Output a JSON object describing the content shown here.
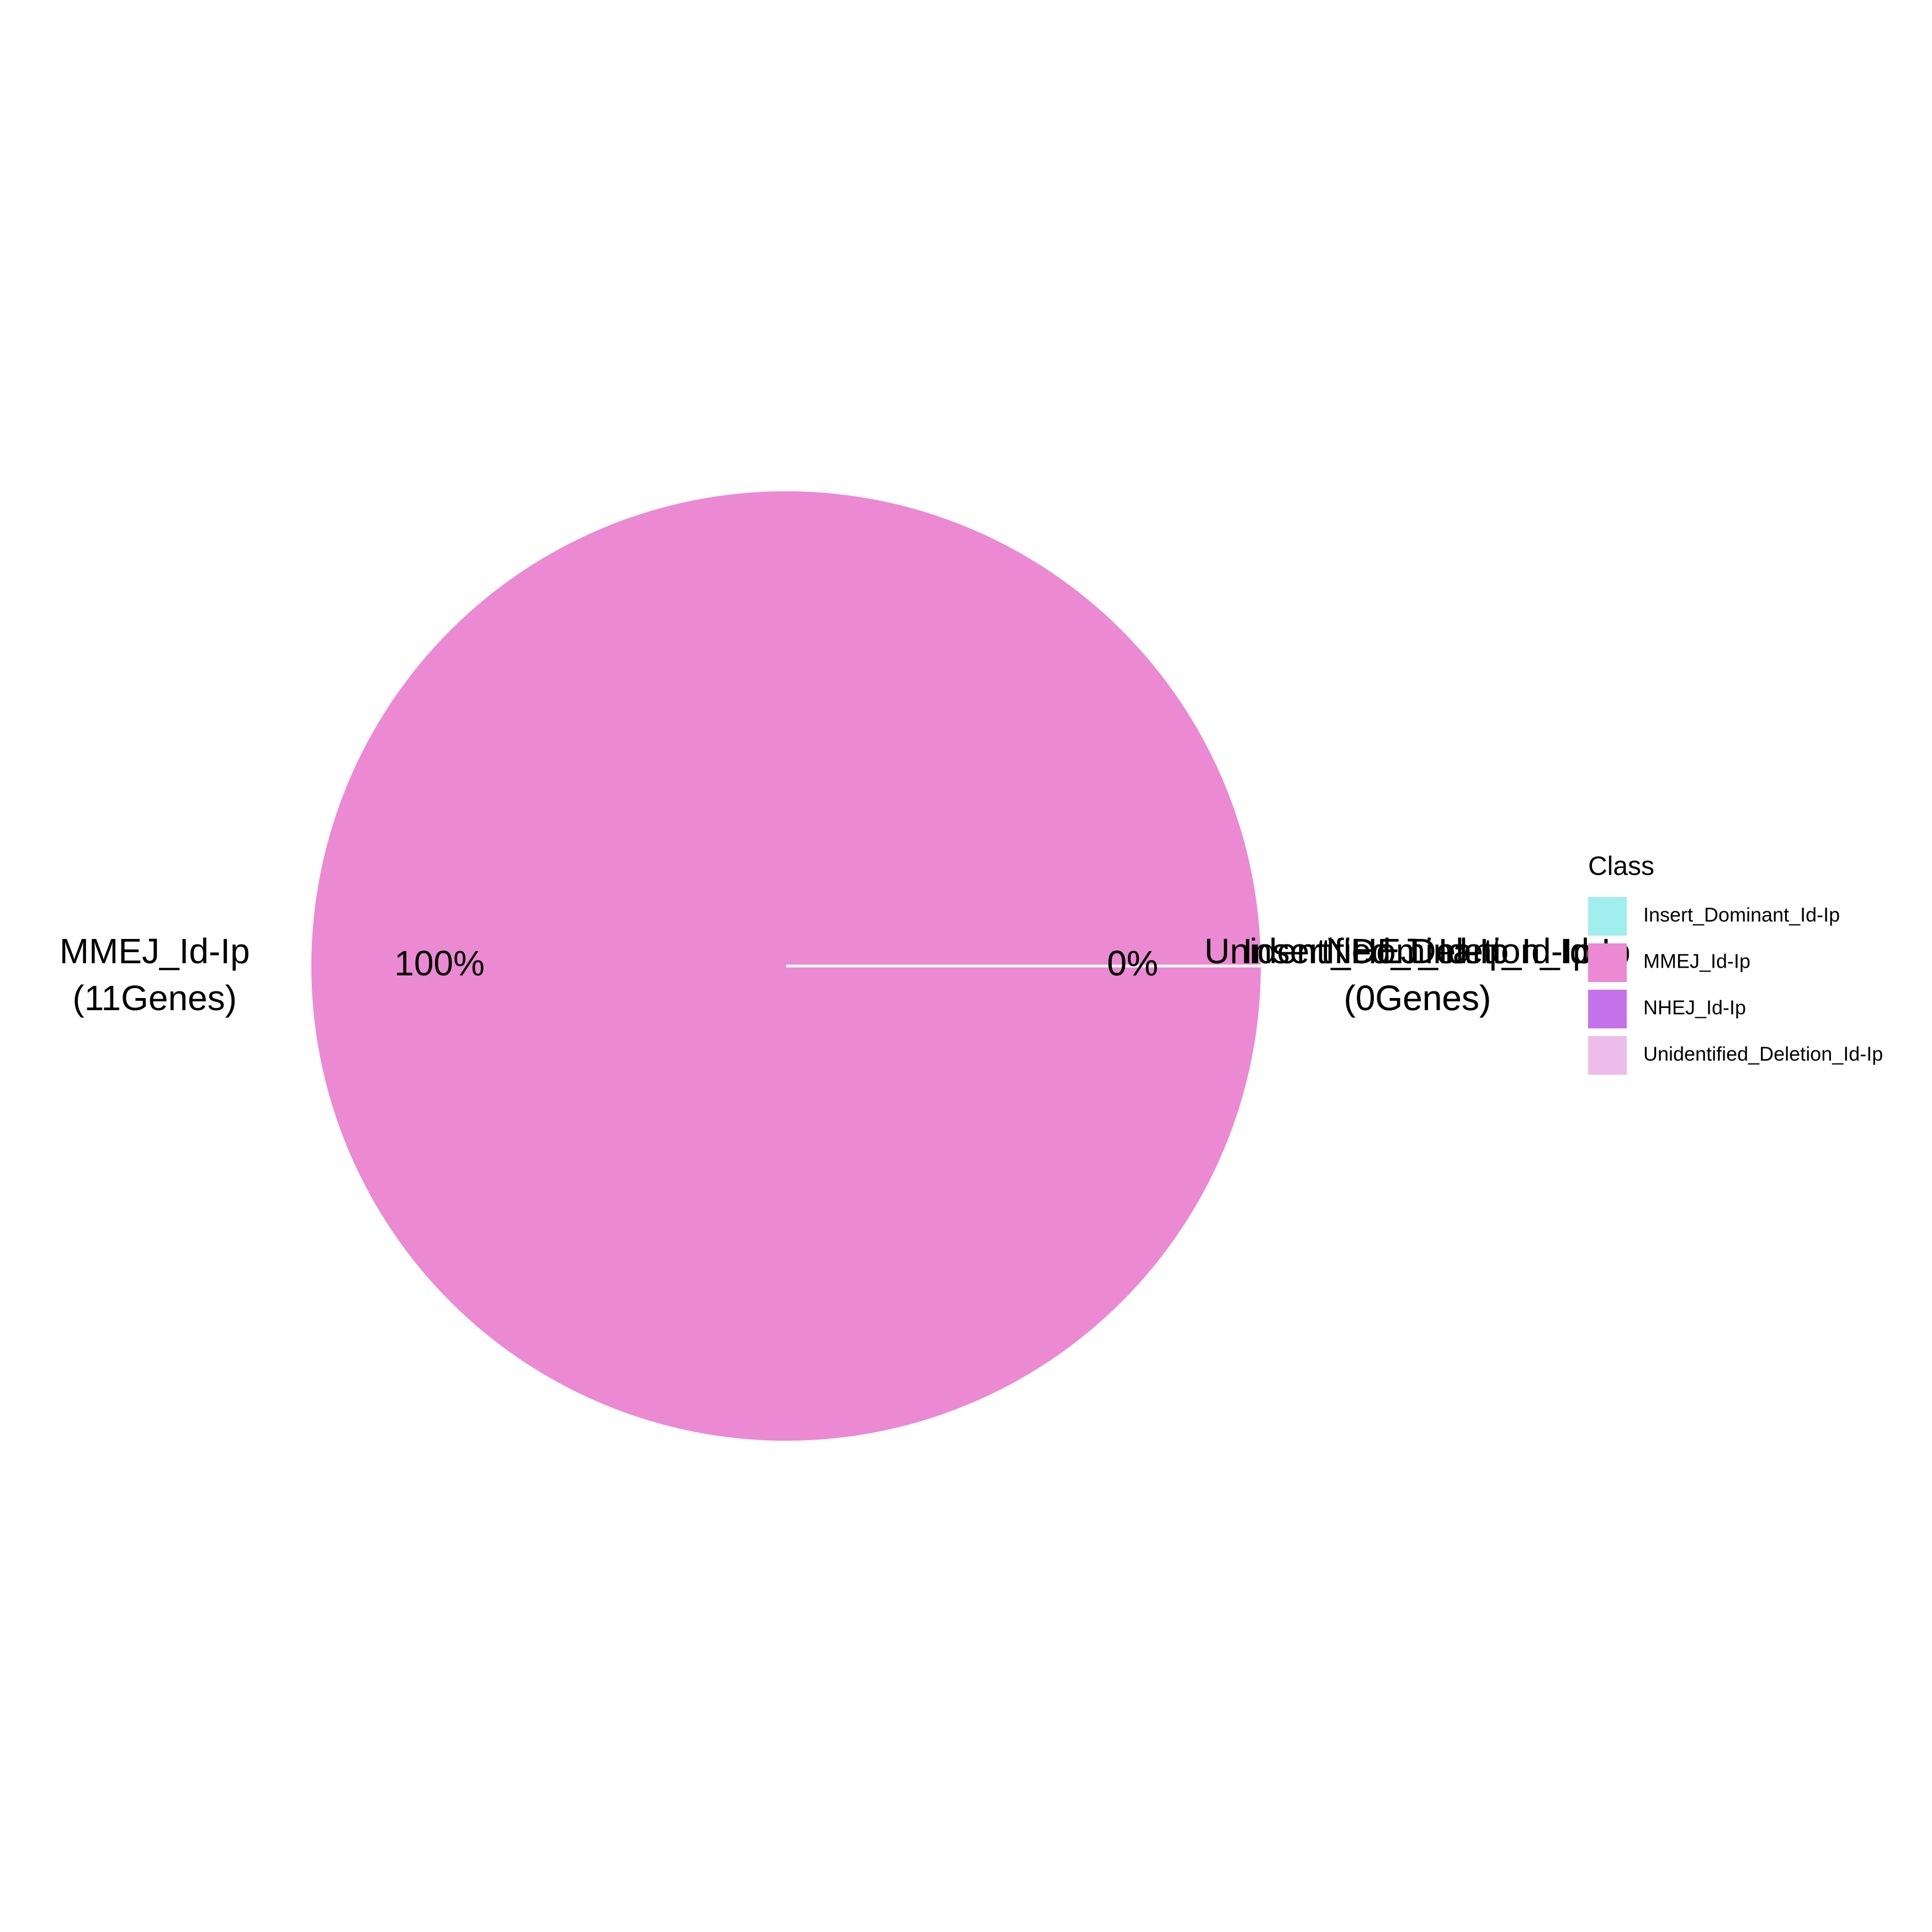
{
  "chart_data": {
    "type": "pie",
    "slices": [
      {
        "label": "Insert_Dominant_Id-Ip",
        "value": 0,
        "percent": "0%",
        "count_label": "(0Genes)",
        "color": "#A0EEEE"
      },
      {
        "label": "MMEJ_Id-Ip",
        "value": 11,
        "percent": "100%",
        "count_label": "(11Genes)",
        "color": "#EC89D3"
      },
      {
        "label": "NHEJ_Id-Ip",
        "value": 0,
        "percent": "0%",
        "count_label": "(0Genes)",
        "color": "#C672EC"
      },
      {
        "label": "Unidentified_Deletion_Id-Ip",
        "value": 0,
        "percent": "0%",
        "count_label": "(0Genes)",
        "color": "#EEBCEB"
      }
    ],
    "legend": {
      "title": "Class",
      "position": "right",
      "items": [
        "Insert_Dominant_Id-Ip",
        "MMEJ_Id-Ip",
        "NHEJ_Id-Ip",
        "Unidentified_Deletion_Id-Ip"
      ]
    },
    "start_angle_deg": 90,
    "direction": "counterclockwise"
  }
}
